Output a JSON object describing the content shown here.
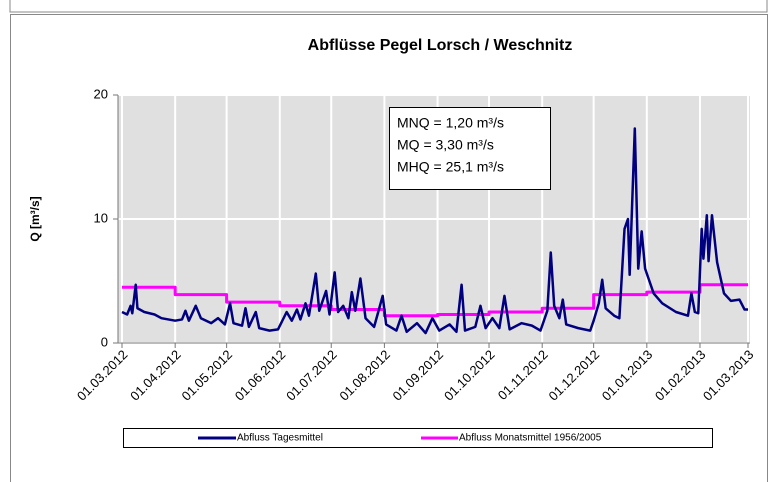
{
  "chart_data": {
    "type": "line",
    "title": "Abflüsse Pegel Lorsch / Weschnitz",
    "y_label": "Q [m³/s]",
    "annotations": [
      "MNQ = 1,20 m³/s",
      "MQ = 3,30 m³/s",
      "MHQ = 25,1 m³/s"
    ],
    "xlim": [
      "01.03.2012",
      "01.03.2013"
    ],
    "xticks": [
      "01.03.2012",
      "01.04.2012",
      "01.05.2012",
      "01.06.2012",
      "01.07.2012",
      "01.08.2012",
      "01.09.2012",
      "01.10.2012",
      "01.11.2012",
      "01.12.2012",
      "01.01.2013",
      "01.02.2013",
      "01.03.2013"
    ],
    "ylim": [
      0,
      20
    ],
    "yticks": [
      0,
      10,
      20
    ],
    "grid": true,
    "series": [
      {
        "name": "Abfluss Tagesmittel",
        "color": "#000080",
        "step": false,
        "x": [
          "01.03.2012",
          "04.03.2012",
          "06.03.2012",
          "07.03.2012",
          "09.03.2012",
          "10.03.2012",
          "14.03.2012",
          "20.03.2012",
          "24.03.2012",
          "28.03.2012",
          "01.04.2012",
          "05.04.2012",
          "07.04.2012",
          "09.04.2012",
          "13.04.2012",
          "16.04.2012",
          "22.04.2012",
          "26.04.2012",
          "30.04.2012",
          "03.05.2012",
          "05.05.2012",
          "10.05.2012",
          "12.05.2012",
          "14.05.2012",
          "18.05.2012",
          "20.05.2012",
          "26.05.2012",
          "31.05.2012",
          "05.06.2012",
          "08.06.2012",
          "11.06.2012",
          "13.06.2012",
          "16.06.2012",
          "18.06.2012",
          "22.06.2012",
          "24.06.2012",
          "28.06.2012",
          "30.06.2012",
          "03.07.2012",
          "05.07.2012",
          "08.07.2012",
          "11.07.2012",
          "13.07.2012",
          "15.07.2012",
          "18.07.2012",
          "21.07.2012",
          "26.07.2012",
          "31.07.2012",
          "02.08.2012",
          "08.08.2012",
          "11.08.2012",
          "14.08.2012",
          "20.08.2012",
          "25.08.2012",
          "29.08.2012",
          "02.09.2012",
          "08.09.2012",
          "12.09.2012",
          "15.09.2012",
          "17.09.2012",
          "23.09.2012",
          "26.09.2012",
          "29.09.2012",
          "03.10.2012",
          "07.10.2012",
          "10.10.2012",
          "13.10.2012",
          "20.10.2012",
          "26.10.2012",
          "31.10.2012",
          "04.11.2012",
          "06.11.2012",
          "08.11.2012",
          "11.11.2012",
          "13.11.2012",
          "15.11.2012",
          "22.11.2012",
          "29.11.2012",
          "01.12.2012",
          "04.12.2012",
          "06.12.2012",
          "08.12.2012",
          "13.12.2012",
          "16.12.2012",
          "19.12.2012",
          "21.12.2012",
          "22.12.2012",
          "25.12.2012",
          "27.12.2012",
          "29.12.2012",
          "31.12.2012",
          "05.01.2013",
          "10.01.2013",
          "18.01.2013",
          "25.01.2013",
          "27.01.2013",
          "29.01.2013",
          "31.01.2013",
          "02.02.2013",
          "03.02.2013",
          "05.02.2013",
          "06.02.2013",
          "08.02.2013",
          "11.02.2013",
          "15.02.2013",
          "19.02.2013",
          "24.02.2013",
          "27.02.2013",
          "01.03.2013"
        ],
        "values": [
          2.5,
          2.3,
          3.0,
          2.4,
          4.7,
          2.8,
          2.5,
          2.3,
          2.0,
          1.9,
          1.8,
          1.9,
          2.6,
          1.8,
          3.0,
          2.0,
          1.6,
          2.0,
          1.5,
          3.2,
          1.6,
          1.4,
          2.8,
          1.3,
          2.5,
          1.2,
          1.0,
          1.1,
          2.5,
          1.8,
          2.7,
          1.9,
          3.2,
          2.2,
          5.6,
          2.6,
          4.2,
          2.3,
          5.7,
          2.5,
          3.0,
          2.0,
          4.1,
          2.6,
          5.2,
          2.0,
          1.3,
          3.8,
          1.5,
          1.0,
          2.2,
          0.9,
          1.6,
          0.8,
          2.0,
          1.0,
          1.5,
          0.9,
          4.7,
          1.0,
          1.3,
          3.0,
          1.2,
          2.0,
          1.2,
          3.8,
          1.1,
          1.6,
          1.4,
          1.0,
          2.6,
          7.3,
          3.0,
          2.0,
          3.5,
          1.5,
          1.2,
          1.0,
          1.8,
          3.2,
          5.1,
          2.8,
          2.2,
          2.0,
          9.2,
          10.0,
          5.5,
          17.3,
          6.0,
          9.0,
          6.0,
          4.0,
          3.2,
          2.5,
          2.2,
          4.0,
          2.5,
          2.4,
          9.2,
          6.8,
          10.3,
          6.6,
          10.3,
          6.5,
          4.0,
          3.4,
          3.5,
          2.7,
          2.7
        ]
      },
      {
        "name": "Abfluss Monatsmittel 1956/2005",
        "color": "#ff00ff",
        "step": true,
        "x": [
          "01.03.2012",
          "01.04.2012",
          "01.05.2012",
          "01.06.2012",
          "01.07.2012",
          "01.08.2012",
          "01.09.2012",
          "01.10.2012",
          "01.11.2012",
          "01.12.2012",
          "01.01.2013",
          "01.02.2013",
          "01.03.2013"
        ],
        "values": [
          4.5,
          3.9,
          3.3,
          3.0,
          2.7,
          2.2,
          2.3,
          2.5,
          2.8,
          3.9,
          4.1,
          4.7,
          4.7
        ]
      }
    ]
  }
}
